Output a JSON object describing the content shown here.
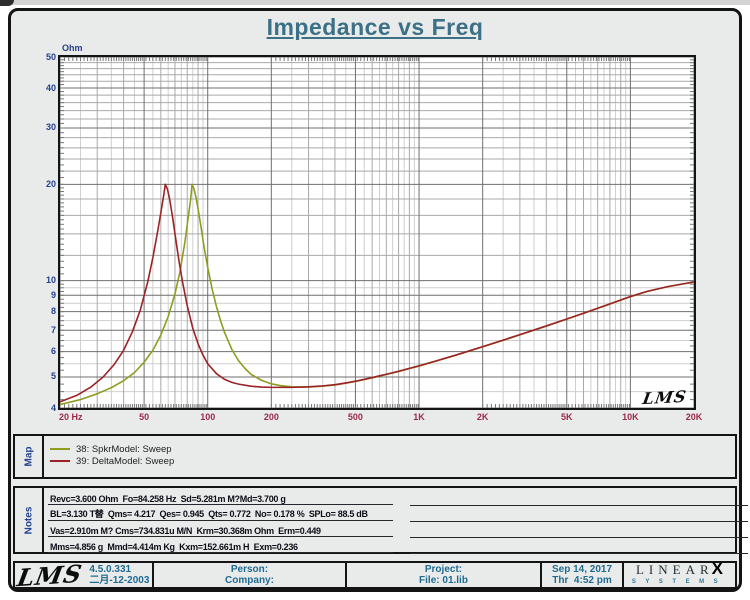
{
  "header": {
    "title": "Impedance vs Freq"
  },
  "colors": {
    "title": "#3c7086",
    "y_axis_text": "#24418e",
    "x_axis_text": "#9c2848",
    "footer_text": "#1f6a90",
    "grid_major": "#6f6f6f",
    "grid_medium": "#a9a9a9",
    "grid_fine": "#cfcfcf",
    "series_green": "#8f9c1f",
    "series_red": "#9b2226"
  },
  "chart_data": {
    "type": "line",
    "title": "Impedance vs Freq",
    "watermark": "LMS",
    "x_axis": {
      "label": "Hz",
      "scale": "log",
      "min": 20,
      "max": 20000,
      "ticks": [
        {
          "f": 20,
          "label": "20 Hz"
        },
        {
          "f": 50,
          "label": "50"
        },
        {
          "f": 100,
          "label": "100"
        },
        {
          "f": 200,
          "label": "200"
        },
        {
          "f": 500,
          "label": "500"
        },
        {
          "f": 1000,
          "label": "1K"
        },
        {
          "f": 2000,
          "label": "2K"
        },
        {
          "f": 5000,
          "label": "5K"
        },
        {
          "f": 10000,
          "label": "10K"
        },
        {
          "f": 20000,
          "label": "20K"
        }
      ],
      "grid_medium": [
        30,
        40,
        60,
        70,
        80,
        90,
        300,
        400,
        600,
        700,
        800,
        900,
        3000,
        4000,
        6000,
        7000,
        8000,
        9000
      ],
      "grid_fine": [
        25,
        35,
        45,
        55,
        65,
        75,
        85,
        95,
        250,
        350,
        450,
        550,
        650,
        750,
        850,
        950,
        2500,
        3500,
        4500,
        5500,
        6500,
        7500,
        8500,
        9500
      ]
    },
    "y_axis": {
      "label": "Ohm",
      "scale": "log",
      "min": 4,
      "max": 50,
      "ticks": [
        {
          "v": 50,
          "label": "50"
        },
        {
          "v": 40,
          "label": "40"
        },
        {
          "v": 30,
          "label": "30"
        },
        {
          "v": 20,
          "label": "20"
        },
        {
          "v": 10,
          "label": "10"
        },
        {
          "v": 9,
          "label": "9"
        },
        {
          "v": 8,
          "label": "8"
        },
        {
          "v": 7,
          "label": "7"
        },
        {
          "v": 6,
          "label": "6"
        },
        {
          "v": 5,
          "label": "5"
        },
        {
          "v": 4,
          "label": "4"
        }
      ],
      "grid_medium": [
        12,
        14,
        16,
        18,
        22,
        24,
        26,
        28,
        32,
        34,
        36,
        38,
        42,
        44,
        46,
        48
      ],
      "grid_fine": [
        4.5,
        5.5,
        6.5,
        7.5,
        8.5,
        9.5
      ]
    },
    "legend_position": "map-panel",
    "series": [
      {
        "id": "38",
        "name": "38: SpkrModel: Sweep",
        "color": "#8f9c1f",
        "points": [
          [
            20,
            4.1
          ],
          [
            25,
            4.25
          ],
          [
            30,
            4.43
          ],
          [
            35,
            4.63
          ],
          [
            40,
            4.87
          ],
          [
            45,
            5.16
          ],
          [
            50,
            5.56
          ],
          [
            55,
            6.06
          ],
          [
            60,
            6.76
          ],
          [
            65,
            7.72
          ],
          [
            70,
            9.1
          ],
          [
            74,
            10.7
          ],
          [
            78,
            13.2
          ],
          [
            81,
            15.9
          ],
          [
            83,
            17.9
          ],
          [
            84.3,
            20.0
          ],
          [
            86,
            19.4
          ],
          [
            88,
            18.2
          ],
          [
            90,
            16.8
          ],
          [
            93,
            14.7
          ],
          [
            96,
            12.8
          ],
          [
            100,
            11.0
          ],
          [
            105,
            9.4
          ],
          [
            110,
            8.3
          ],
          [
            115,
            7.5
          ],
          [
            120,
            6.9
          ],
          [
            130,
            6.1
          ],
          [
            140,
            5.62
          ],
          [
            150,
            5.32
          ],
          [
            160,
            5.1
          ],
          [
            180,
            4.88
          ],
          [
            200,
            4.76
          ],
          [
            220,
            4.7
          ],
          [
            250,
            4.66
          ],
          [
            300,
            4.65
          ],
          [
            350,
            4.68
          ],
          [
            400,
            4.72
          ],
          [
            450,
            4.78
          ],
          [
            500,
            4.84
          ],
          [
            600,
            4.97
          ],
          [
            700,
            5.09
          ],
          [
            800,
            5.2
          ],
          [
            900,
            5.31
          ],
          [
            1000,
            5.41
          ],
          [
            1200,
            5.6
          ],
          [
            1500,
            5.85
          ],
          [
            2000,
            6.21
          ],
          [
            2500,
            6.51
          ],
          [
            3000,
            6.77
          ],
          [
            4000,
            7.21
          ],
          [
            5000,
            7.58
          ],
          [
            6000,
            7.9
          ],
          [
            7000,
            8.19
          ],
          [
            8000,
            8.45
          ],
          [
            9000,
            8.69
          ],
          [
            10000,
            8.91
          ],
          [
            12000,
            9.25
          ],
          [
            15000,
            9.57
          ],
          [
            18000,
            9.78
          ],
          [
            20000,
            9.9
          ]
        ]
      },
      {
        "id": "39",
        "name": "39: DeltaModel: Sweep",
        "color": "#9b2226",
        "points": [
          [
            20,
            4.18
          ],
          [
            24,
            4.38
          ],
          [
            28,
            4.65
          ],
          [
            32,
            5.0
          ],
          [
            36,
            5.46
          ],
          [
            40,
            6.06
          ],
          [
            44,
            6.92
          ],
          [
            48,
            8.1
          ],
          [
            52,
            9.9
          ],
          [
            55,
            11.8
          ],
          [
            58,
            14.3
          ],
          [
            60,
            16.3
          ],
          [
            62,
            18.6
          ],
          [
            63,
            20.0
          ],
          [
            64.5,
            19.3
          ],
          [
            66,
            18.0
          ],
          [
            68,
            16.0
          ],
          [
            70,
            14.0
          ],
          [
            73,
            11.6
          ],
          [
            76,
            9.9
          ],
          [
            80,
            8.35
          ],
          [
            85,
            7.1
          ],
          [
            90,
            6.35
          ],
          [
            95,
            5.85
          ],
          [
            100,
            5.5
          ],
          [
            110,
            5.12
          ],
          [
            120,
            4.92
          ],
          [
            130,
            4.81
          ],
          [
            140,
            4.75
          ],
          [
            160,
            4.68
          ],
          [
            180,
            4.65
          ],
          [
            200,
            4.64
          ],
          [
            250,
            4.64
          ],
          [
            300,
            4.66
          ],
          [
            350,
            4.69
          ],
          [
            400,
            4.73
          ],
          [
            450,
            4.79
          ],
          [
            500,
            4.85
          ],
          [
            600,
            4.98
          ],
          [
            700,
            5.1
          ],
          [
            800,
            5.21
          ],
          [
            900,
            5.32
          ],
          [
            1000,
            5.42
          ],
          [
            1200,
            5.61
          ],
          [
            1500,
            5.86
          ],
          [
            2000,
            6.22
          ],
          [
            2500,
            6.52
          ],
          [
            3000,
            6.78
          ],
          [
            4000,
            7.22
          ],
          [
            5000,
            7.59
          ],
          [
            6000,
            7.91
          ],
          [
            7000,
            8.2
          ],
          [
            8000,
            8.46
          ],
          [
            9000,
            8.7
          ],
          [
            10000,
            8.92
          ],
          [
            12000,
            9.26
          ],
          [
            15000,
            9.58
          ],
          [
            18000,
            9.79
          ],
          [
            20000,
            9.91
          ]
        ]
      }
    ]
  },
  "map_panel": {
    "label": "Map"
  },
  "notes_panel": {
    "label": "Notes",
    "lines": [
      "Revc=3.600 Ohm  Fo=84.258 Hz  Sd=5.281m M?Md=3.700 g",
      "BL=3.130 T替  Qms= 4.217  Qes= 0.945  Qts= 0.772  No= 0.178 %  SPLo= 88.5 dB",
      "Vas=2.910m M? Cms=734.831u M/N  Krm=30.368m Ohm  Erm=0.449",
      "Mms=4.856 g  Mmd=4.414m Kg  Kxm=152.661m H  Exm=0.236"
    ],
    "blank_line_count": 4
  },
  "footer": {
    "logo": "LMS",
    "version": "4.5.0.331",
    "date": "二月-12-2003",
    "person_label": "Person:",
    "company_label": "Company:",
    "project_label": "Project:",
    "file_label": "File: 01.lib",
    "datestamp": "Sep 14, 2017",
    "timestamp": "Thr  4:52 pm",
    "brand": {
      "name": "LINEAR",
      "x": "X",
      "sub": "SYSTEMS"
    }
  }
}
